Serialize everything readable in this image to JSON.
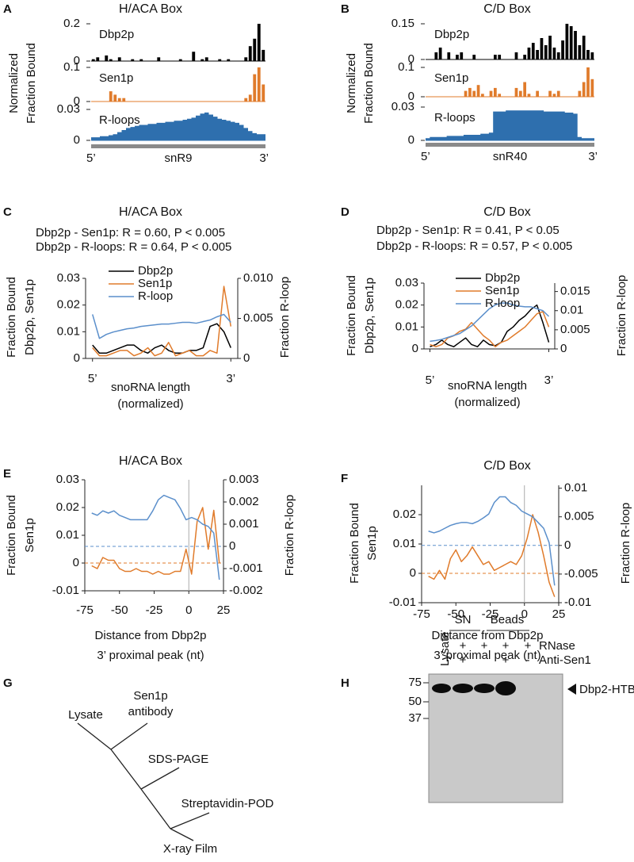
{
  "panel_labels": [
    "A",
    "B",
    "C",
    "D",
    "E",
    "F",
    "G",
    "H"
  ],
  "chart_data": [
    {
      "type": "tracks",
      "title": "H/ACA Box",
      "ylabel": [
        "Normalized",
        "Fraction Bound"
      ],
      "gene": "snR9",
      "x_start_label": "5’",
      "x_end_label": "3’",
      "tracks": [
        {
          "name": "Dbp2p",
          "style": "bar",
          "color": "#000000",
          "ylim": [
            0,
            0.2
          ],
          "yticks": [
            0,
            0.2
          ],
          "values": [
            0.01,
            0.02,
            0,
            0.03,
            0.01,
            0,
            0.02,
            0,
            0,
            0.01,
            0,
            0.01,
            0,
            0,
            0,
            0.02,
            0,
            0,
            0,
            0,
            0.01,
            0,
            0,
            0.05,
            0,
            0.01,
            0.02,
            0,
            0,
            0.01,
            0,
            0.01,
            0,
            0,
            0,
            0.02,
            0.08,
            0.12,
            0.2,
            0.06
          ]
        },
        {
          "name": "Sen1p",
          "style": "bar",
          "color": "#e07b2b",
          "ylim": [
            0,
            0.1
          ],
          "yticks": [
            0,
            0.1
          ],
          "values": [
            0,
            0,
            0,
            0,
            0.03,
            0.02,
            0.01,
            0.01,
            0,
            0,
            0,
            0,
            0,
            0,
            0,
            0,
            0,
            0,
            0,
            0,
            0,
            0,
            0,
            0,
            0,
            0,
            0,
            0,
            0,
            0,
            0,
            0,
            0,
            0,
            0,
            0.01,
            0.02,
            0.08,
            0.1,
            0.05
          ]
        },
        {
          "name": "R-loops",
          "style": "area",
          "color": "#2e6fae",
          "ylim": [
            0,
            0.03
          ],
          "yticks": [
            0,
            0.03
          ],
          "values": [
            0.003,
            0.003,
            0.004,
            0.004,
            0.005,
            0.006,
            0.008,
            0.01,
            0.012,
            0.013,
            0.014,
            0.015,
            0.015,
            0.016,
            0.016,
            0.017,
            0.017,
            0.018,
            0.018,
            0.019,
            0.019,
            0.02,
            0.021,
            0.022,
            0.024,
            0.026,
            0.027,
            0.025,
            0.023,
            0.021,
            0.02,
            0.019,
            0.018,
            0.017,
            0.015,
            0.012,
            0.009,
            0.007,
            0.006,
            0.006
          ]
        }
      ]
    },
    {
      "type": "tracks",
      "title": "C/D Box",
      "ylabel": [
        "Normalized",
        "Fraction Bound"
      ],
      "gene": "snR40",
      "x_start_label": "5’",
      "x_end_label": "3’",
      "tracks": [
        {
          "name": "Dbp2p",
          "style": "bar",
          "color": "#000000",
          "ylim": [
            0,
            0.15
          ],
          "yticks": [
            0,
            0.15
          ],
          "values": [
            0,
            0,
            0.03,
            0.05,
            0,
            0.03,
            0,
            0.02,
            0.03,
            0,
            0,
            0.02,
            0,
            0,
            0,
            0,
            0.02,
            0.02,
            0,
            0,
            0,
            0.03,
            0,
            0.02,
            0.05,
            0.07,
            0.04,
            0.09,
            0.06,
            0.1,
            0.05,
            0.03,
            0.08,
            0.15,
            0.14,
            0.12,
            0.06,
            0.1,
            0.04,
            0.03
          ]
        },
        {
          "name": "Sen1p",
          "style": "bar",
          "color": "#e07b2b",
          "ylim": [
            0,
            0.1
          ],
          "yticks": [
            0,
            0.1
          ],
          "values": [
            0,
            0,
            0,
            0,
            0,
            0,
            0,
            0,
            0,
            0.02,
            0.03,
            0.02,
            0.04,
            0.01,
            0,
            0.02,
            0.03,
            0.01,
            0,
            0,
            0,
            0.03,
            0.02,
            0.05,
            0.01,
            0,
            0.02,
            0,
            0,
            0.02,
            0.01,
            0.02,
            0,
            0,
            0,
            0,
            0.02,
            0.05,
            0.1,
            0.06
          ]
        },
        {
          "name": "R-loops",
          "style": "area",
          "color": "#2e6fae",
          "ylim": [
            0,
            0.03
          ],
          "yticks": [
            0,
            0.03
          ],
          "values": [
            0.002,
            0.003,
            0.003,
            0.003,
            0.003,
            0.004,
            0.004,
            0.004,
            0.004,
            0.005,
            0.005,
            0.005,
            0.005,
            0.006,
            0.006,
            0.007,
            0.026,
            0.026,
            0.026,
            0.027,
            0.027,
            0.027,
            0.027,
            0.027,
            0.027,
            0.027,
            0.027,
            0.027,
            0.026,
            0.026,
            0.026,
            0.026,
            0.026,
            0.025,
            0.025,
            0.024,
            0.003,
            0.002,
            0.002,
            0.002
          ]
        }
      ]
    },
    {
      "type": "line",
      "title": "H/ACA Box",
      "annotations": [
        "Dbp2p - Sen1p:   R = 0.60, P < 0.005",
        "Dbp2p - R-loops: R = 0.64, P < 0.005"
      ],
      "xlabel": [
        "snoRNA length",
        "(normalized)"
      ],
      "ylabel": [
        "Fraction Bound",
        "Dbp2p, Sen1p"
      ],
      "y2label": "Fraction R-loop",
      "x": [
        0,
        0.05,
        0.1,
        0.15,
        0.2,
        0.25,
        0.3,
        0.35,
        0.4,
        0.45,
        0.5,
        0.55,
        0.6,
        0.65,
        0.7,
        0.75,
        0.8,
        0.85,
        0.9,
        0.95,
        1
      ],
      "xlim": [
        -0.05,
        1.05
      ],
      "xticks": [
        {
          "value": 0,
          "label": "5’"
        },
        {
          "value": 1,
          "label": "3’"
        }
      ],
      "ylim": [
        0,
        0.03
      ],
      "yticks": [
        0,
        0.01,
        0.02,
        0.03
      ],
      "y2lim": [
        0,
        0.01
      ],
      "y2ticks": [
        0,
        0.005,
        {
          "value": 0.01,
          "label": "0.010"
        }
      ],
      "legend": "top-left",
      "series": [
        {
          "name": "Dbp2p",
          "color": "#000000",
          "values": [
            0.005,
            0.002,
            0.002,
            0.003,
            0.004,
            0.005,
            0.005,
            0.003,
            0.002,
            0.004,
            0.005,
            0.003,
            0.002,
            0.002,
            0.003,
            0.003,
            0.004,
            0.012,
            0.013,
            0.01,
            0.004
          ]
        },
        {
          "name": "Sen1p",
          "color": "#e07b2b",
          "values": [
            0.004,
            0.001,
            0.001,
            0.002,
            0.003,
            0.003,
            0.001,
            0.002,
            0.004,
            0.001,
            0.002,
            0.006,
            0.001,
            0.002,
            0.003,
            0.001,
            0.001,
            0.003,
            0.002,
            0.027,
            0.012
          ]
        },
        {
          "name": "R-loop",
          "color": "#5b8fcb",
          "axis": "y2",
          "values": [
            0.0055,
            0.0025,
            0.003,
            0.0033,
            0.0035,
            0.0037,
            0.0038,
            0.004,
            0.0041,
            0.0042,
            0.0043,
            0.0043,
            0.0044,
            0.0045,
            0.0045,
            0.0044,
            0.0046,
            0.0048,
            0.0052,
            0.0055,
            0.0045
          ]
        }
      ]
    },
    {
      "type": "line",
      "title": "C/D Box",
      "annotations": [
        "Dbp2p - Sen1p:   R = 0.41, P < 0.05",
        "Dbp2p - R-loops: R = 0.57, P < 0.005"
      ],
      "xlabel": [
        "snoRNA length",
        "(normalized)"
      ],
      "ylabel": [
        "Fraction Bound",
        "Dbp2p, Sen1p"
      ],
      "y2label": "Fraction R-loop",
      "x": [
        0,
        0.05,
        0.1,
        0.15,
        0.2,
        0.25,
        0.3,
        0.35,
        0.4,
        0.45,
        0.5,
        0.55,
        0.6,
        0.65,
        0.7,
        0.75,
        0.8,
        0.85,
        0.9,
        0.95,
        1
      ],
      "xlim": [
        -0.05,
        1.05
      ],
      "xticks": [
        {
          "value": 0,
          "label": "5’"
        },
        {
          "value": 1,
          "label": "3’"
        }
      ],
      "ylim": [
        0,
        0.03
      ],
      "yticks": [
        0,
        0.01,
        0.02,
        0.03
      ],
      "y2lim": [
        0,
        0.0172
      ],
      "y2ticks": [
        0,
        0.005,
        0.01,
        0.015
      ],
      "legend": "top-left",
      "series": [
        {
          "name": "Dbp2p",
          "color": "#000000",
          "values": [
            0.001,
            0.002,
            0.004,
            0.002,
            0.001,
            0.003,
            0.005,
            0.002,
            0.001,
            0.004,
            0.002,
            0.0015,
            0.003,
            0.008,
            0.01,
            0.013,
            0.015,
            0.018,
            0.02,
            0.012,
            0.003
          ]
        },
        {
          "name": "Sen1p",
          "color": "#e07b2b",
          "values": [
            0.002,
            0.001,
            0.002,
            0.005,
            0.006,
            0.008,
            0.009,
            0.012,
            0.009,
            0.006,
            0.004,
            0.001,
            0.003,
            0.004,
            0.006,
            0.008,
            0.01,
            0.013,
            0.016,
            0.017,
            0.01
          ]
        },
        {
          "name": "R-loop",
          "color": "#5b8fcb",
          "axis": "y2",
          "values": [
            0.002,
            0.0022,
            0.0025,
            0.003,
            0.0035,
            0.004,
            0.005,
            0.006,
            0.0075,
            0.009,
            0.0105,
            0.0115,
            0.012,
            0.012,
            0.0115,
            0.0112,
            0.011,
            0.011,
            0.0105,
            0.01,
            0.0085
          ]
        }
      ]
    },
    {
      "type": "line",
      "title": "H/ACA Box",
      "xlabel": [
        "Distance from Dbp2p",
        "3’ proximal peak (nt)"
      ],
      "ylabel": [
        "Fraction Bound",
        "Sen1p"
      ],
      "y2label": "Fraction R-loop",
      "x": [
        -70,
        -66,
        -62,
        -58,
        -54,
        -50,
        -46,
        -42,
        -38,
        -34,
        -30,
        -26,
        -22,
        -18,
        -14,
        -10,
        -6,
        -2,
        2,
        6,
        10,
        14,
        18,
        22
      ],
      "xlim": [
        -75,
        25
      ],
      "xticks": [
        -75,
        -50,
        -25,
        0,
        25
      ],
      "ylim": [
        -0.01,
        0.03
      ],
      "yticks": [
        -0.01,
        0,
        0.01,
        0.02,
        0.03
      ],
      "y2lim": [
        -0.002,
        0.003
      ],
      "y2ticks": [
        -0.002,
        -0.001,
        0,
        0.001,
        0.002,
        0.003
      ],
      "hlines": [
        {
          "value": 0,
          "axis": "y",
          "color": "#e07b2b"
        },
        {
          "value": 0,
          "axis": "y2",
          "color": "#5b8fcb"
        }
      ],
      "vlines": [
        0
      ],
      "series": [
        {
          "color": "#e07b2b",
          "values": [
            -0.001,
            -0.002,
            0.002,
            0.001,
            0.001,
            -0.002,
            -0.003,
            -0.003,
            -0.002,
            -0.003,
            -0.003,
            -0.004,
            -0.003,
            -0.004,
            -0.004,
            -0.003,
            -0.003,
            0.005,
            -0.004,
            0.015,
            0.02,
            0.005,
            0.019,
            0
          ]
        },
        {
          "color": "#5b8fcb",
          "axis": "y2",
          "values": [
            0.0015,
            0.0014,
            0.0016,
            0.0015,
            0.0016,
            0.0014,
            0.0013,
            0.0012,
            0.0012,
            0.0012,
            0.0012,
            0.0016,
            0.0021,
            0.0023,
            0.0022,
            0.0021,
            0.0017,
            0.0012,
            0.0013,
            0.0012,
            0.001,
            0.0009,
            0.0006,
            -0.0015
          ]
        }
      ]
    },
    {
      "type": "line",
      "title": "C/D Box",
      "xlabel": [
        "Distance from Dbp2p",
        "3’ proximal peak (nt)"
      ],
      "ylabel": [
        "Fraction Bound",
        "Sen1p"
      ],
      "y2label": "Fraction R-loop",
      "x": [
        -70,
        -66,
        -62,
        -58,
        -54,
        -50,
        -46,
        -42,
        -38,
        -34,
        -30,
        -26,
        -22,
        -18,
        -14,
        -10,
        -6,
        -2,
        2,
        6,
        10,
        14,
        18,
        22
      ],
      "xlim": [
        -75,
        25
      ],
      "xticks": [
        -75,
        -50,
        -25,
        0,
        25
      ],
      "ylim": [
        -0.01,
        0.03
      ],
      "yticks": [
        -0.01,
        0,
        0.01,
        0.02
      ],
      "y2lim": [
        -0.01,
        0.0105
      ],
      "y2ticks": [
        -0.01,
        -0.005,
        0,
        0.005,
        0.01
      ],
      "hlines": [
        {
          "value": 0,
          "axis": "y",
          "color": "#e07b2b"
        },
        {
          "value": 0,
          "axis": "y2",
          "color": "#5b8fcb"
        }
      ],
      "vlines": [
        0
      ],
      "series": [
        {
          "color": "#e07b2b",
          "values": [
            -0.001,
            -0.002,
            0.001,
            -0.002,
            0.005,
            0.008,
            0.004,
            0.006,
            0.009,
            0.006,
            0.003,
            0.004,
            0.001,
            0.002,
            0.003,
            0.004,
            0.003,
            0.006,
            0.012,
            0.02,
            0.014,
            0.006,
            -0.003,
            -0.008
          ]
        },
        {
          "color": "#5b8fcb",
          "axis": "y2",
          "values": [
            0.0025,
            0.0022,
            0.0025,
            0.003,
            0.0035,
            0.0038,
            0.004,
            0.004,
            0.0038,
            0.0042,
            0.0048,
            0.0055,
            0.0075,
            0.0085,
            0.0085,
            0.0075,
            0.007,
            0.006,
            0.0055,
            0.005,
            0.004,
            0.003,
            0.0005,
            -0.007
          ]
        }
      ]
    }
  ],
  "diagram": {
    "nodes": [
      "Lysate",
      "Sen1p",
      "antibody",
      "SDS-PAGE",
      "Streptavidin-POD",
      "X-ray Film"
    ]
  },
  "gel": {
    "lane_label": "Lysate",
    "groups": [
      "SN",
      "Beads"
    ],
    "conditions": [
      {
        "name": "RNase",
        "signs": [
          null,
          "+",
          "+",
          "+",
          "+"
        ]
      },
      {
        "name": "Anti-Sen1",
        "signs": [
          null,
          "+",
          null,
          "+",
          "-"
        ]
      }
    ],
    "markers": [
      75,
      50,
      37
    ],
    "band_label": "Dbp2-HTBH"
  }
}
